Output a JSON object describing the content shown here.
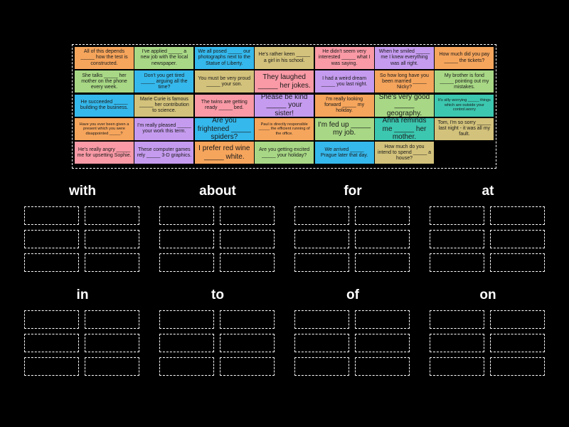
{
  "colors": {
    "orange": "#f6a55c",
    "green": "#a8d885",
    "blue": "#35b8ec",
    "tan": "#d3c27b",
    "pink": "#f99aa6",
    "purple": "#c59bef",
    "teal": "#3cc7b0"
  },
  "cards": [
    {
      "text": "All of this depends _____ how the test is constructed.",
      "color": "orange"
    },
    {
      "text": "I've applied _____ a new job with the local newspaper.",
      "color": "green"
    },
    {
      "text": "We all posed _____ our photographs next to the Statue of Liberty.",
      "color": "blue"
    },
    {
      "text": "He's rather keen _____ a girl in his school.",
      "color": "tan"
    },
    {
      "text": "He didn't seem very interested _____ what I was saying.",
      "color": "pink"
    },
    {
      "text": "When he smiled _____ me I knew everything was all right.",
      "color": "purple"
    },
    {
      "text": "How much did you pay _____ the tickets?",
      "color": "orange"
    },
    {
      "text": "She talks _____ her mother on the phone every week.",
      "color": "green"
    },
    {
      "text": "Don't you get tired _____ arguing all the time?",
      "color": "blue"
    },
    {
      "text": "You must be very proud _____ your son.",
      "color": "tan"
    },
    {
      "text": "They laughed _____ her jokes.",
      "color": "pink"
    },
    {
      "text": "I had a weird dream _____ you last night.",
      "color": "purple"
    },
    {
      "text": "So how long have you been married _____ Nicky?",
      "color": "orange"
    },
    {
      "text": "My brother is fond _____ pointing out my mistakes.",
      "color": "green"
    },
    {
      "text": "He succeeded _____ building the business.",
      "color": "blue"
    },
    {
      "text": "Marie Curie is famous _____ her contribution to science.",
      "color": "tan"
    },
    {
      "text": "The twins are getting ready _____ bed.",
      "color": "pink"
    },
    {
      "text": "Please be kind _____ your sister!",
      "color": "purple"
    },
    {
      "text": "I'm really looking forward _____ my holiday.",
      "color": "orange"
    },
    {
      "text": "She's very good _____ geography.",
      "color": "green"
    },
    {
      "text": "It's silly worrying _____ things which are outside your control.worry",
      "color": "teal"
    },
    {
      "text": "Have you ever been given a present which you were disappointed _____?",
      "color": "orange"
    },
    {
      "text": "I'm really pleased _____ your work this term.",
      "color": "purple"
    },
    {
      "text": "Are you frightened _____ spiders?",
      "color": "blue"
    },
    {
      "text": "Paul is directly responsible _____ the efficient running of the office.",
      "color": "orange"
    },
    {
      "text": "I'm fed up _____ my job.",
      "color": "green"
    },
    {
      "text": "Anna reminds me _____ her mother.",
      "color": "teal"
    },
    {
      "text": "Tom, I'm so sorry _____ last night - it was all my fault.",
      "color": "tan"
    },
    {
      "text": "He's really angry _____ me for upsetting Sophie.",
      "color": "pink"
    },
    {
      "text": "These computer games rely _____ 3-D graphics.",
      "color": "purple"
    },
    {
      "text": "I prefer red wine _____ white.",
      "color": "orange"
    },
    {
      "text": "Are you getting excited _____ your holiday?",
      "color": "green"
    },
    {
      "text": "We arrived _____ Prague later that day.",
      "color": "blue"
    },
    {
      "text": "How much do you intend to spend _____ a house?",
      "color": "tan"
    }
  ],
  "categories": [
    {
      "label": "with"
    },
    {
      "label": "about"
    },
    {
      "label": "for"
    },
    {
      "label": "at"
    },
    {
      "label": "in"
    },
    {
      "label": "to"
    },
    {
      "label": "of"
    },
    {
      "label": "on"
    }
  ]
}
